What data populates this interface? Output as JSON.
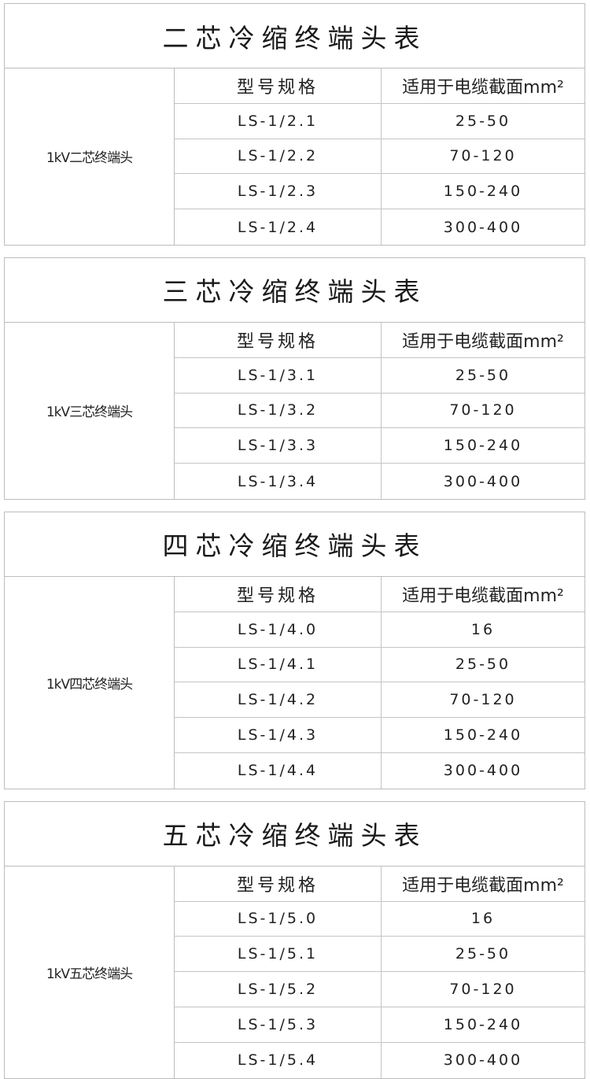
{
  "tables": [
    {
      "title": "二芯冷缩终端头表",
      "category": "1kV二芯终端头",
      "headers": [
        "型号规格",
        "适用于电缆截面mm²"
      ],
      "rows": [
        [
          "LS-1/2.1",
          "25-50"
        ],
        [
          "LS-1/2.2",
          "70-120"
        ],
        [
          "LS-1/2.3",
          "150-240"
        ],
        [
          "LS-1/2.4",
          "300-400"
        ]
      ]
    },
    {
      "title": "三芯冷缩终端头表",
      "category": "1kV三芯终端头",
      "headers": [
        "型号规格",
        "适用于电缆截面mm²"
      ],
      "rows": [
        [
          "LS-1/3.1",
          "25-50"
        ],
        [
          "LS-1/3.2",
          "70-120"
        ],
        [
          "LS-1/3.3",
          "150-240"
        ],
        [
          "LS-1/3.4",
          "300-400"
        ]
      ]
    },
    {
      "title": "四芯冷缩终端头表",
      "category": "1kV四芯终端头",
      "headers": [
        "型号规格",
        "适用于电缆截面mm²"
      ],
      "rows": [
        [
          "LS-1/4.0",
          "16"
        ],
        [
          "LS-1/4.1",
          "25-50"
        ],
        [
          "LS-1/4.2",
          "70-120"
        ],
        [
          "LS-1/4.3",
          "150-240"
        ],
        [
          "LS-1/4.4",
          "300-400"
        ]
      ]
    },
    {
      "title": "五芯冷缩终端头表",
      "category": "1kV五芯终端头",
      "headers": [
        "型号规格",
        "适用于电缆截面mm²"
      ],
      "rows": [
        [
          "LS-1/5.0",
          "16"
        ],
        [
          "LS-1/5.1",
          "25-50"
        ],
        [
          "LS-1/5.2",
          "70-120"
        ],
        [
          "LS-1/5.3",
          "150-240"
        ],
        [
          "LS-1/5.4",
          "300-400"
        ]
      ]
    }
  ]
}
